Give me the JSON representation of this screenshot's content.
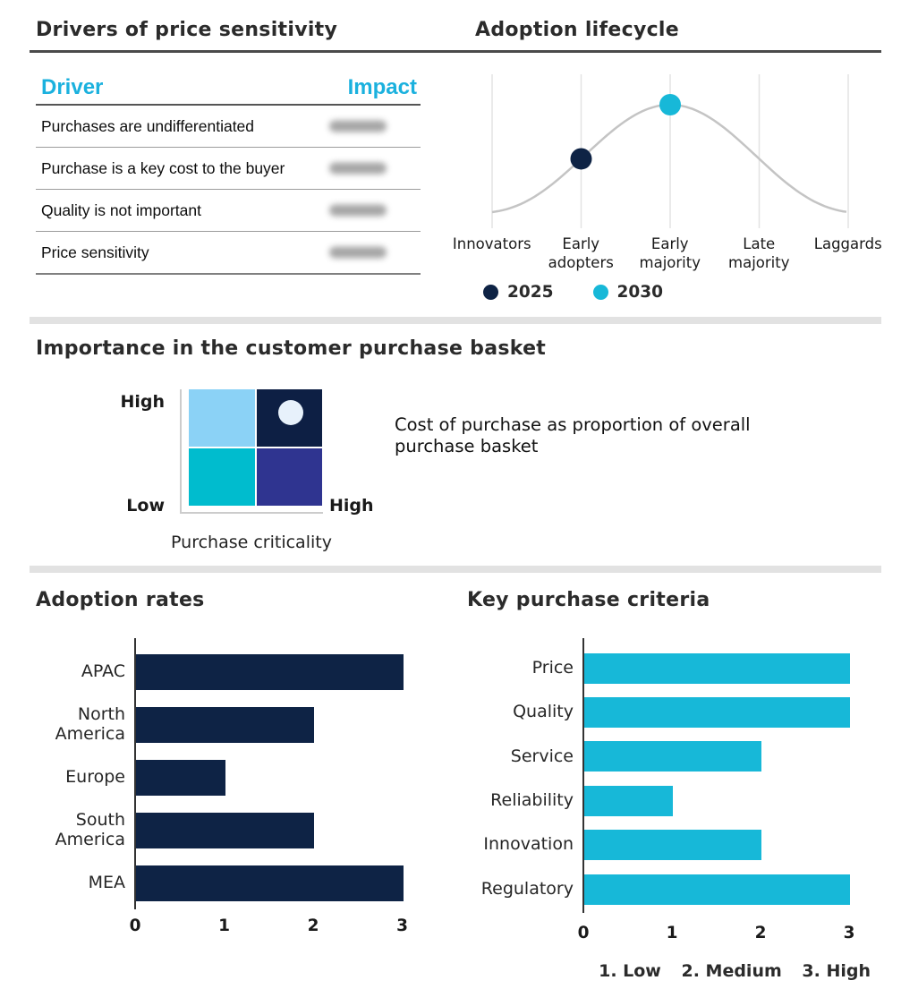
{
  "chart_data": [
    {
      "id": "drivers-of-price-sensitivity",
      "type": "table",
      "title": "Drivers of price sensitivity",
      "columns": [
        "Driver",
        "Impact"
      ],
      "header_color": "#1BB1DE",
      "rows": [
        {
          "driver": "Purchases are undifferentiated",
          "impact": "[blurred]"
        },
        {
          "driver": "Purchase is a key cost to the buyer",
          "impact": "[blurred]"
        },
        {
          "driver": "Quality is not important",
          "impact": "[blurred]"
        },
        {
          "driver": "Price sensitivity",
          "impact": "[blurred]"
        }
      ]
    },
    {
      "id": "adoption-lifecycle",
      "type": "line",
      "title": "Adoption lifecycle",
      "categories": [
        "Innovators",
        "Early adopters",
        "Early majority",
        "Late majority",
        "Laggards"
      ],
      "curve": {
        "shape": "bell",
        "peak_category": "Early majority",
        "color": "#C4C4C4"
      },
      "series": [
        {
          "name": "2025",
          "color": "#0E2345",
          "point_category": "Early adopters"
        },
        {
          "name": "2030",
          "color": "#17B8D8",
          "point_category": "Early majority"
        }
      ],
      "legend_position": "bottom",
      "grid": "vertical"
    },
    {
      "id": "importance-purchase-basket",
      "type": "heatmap",
      "title": "Importance in the customer purchase basket",
      "y_high_label": "High",
      "y_low_label": "Low",
      "x_high_label": "High",
      "x_axis_label": "Purchase criticality",
      "quadrants": [
        {
          "position": "top-left",
          "color": "#8BD2F6"
        },
        {
          "position": "top-right",
          "color": "#0D1F44",
          "marker": true
        },
        {
          "position": "bottom-left",
          "color": "#00BCCE"
        },
        {
          "position": "bottom-right",
          "color": "#2F3490"
        }
      ],
      "marker_color": "#E7F1FB",
      "annotation": "Cost of purchase as proportion of overall purchase basket"
    },
    {
      "id": "adoption-rates",
      "type": "bar",
      "orientation": "horizontal",
      "title": "Adoption rates",
      "categories": [
        "APAC",
        "North America",
        "Europe",
        "South America",
        "MEA"
      ],
      "values": [
        3,
        2,
        1,
        2,
        3
      ],
      "bar_color": "#0E2345",
      "xlim": [
        0,
        3
      ],
      "ticks": [
        "0",
        "1",
        "2",
        "3"
      ]
    },
    {
      "id": "key-purchase-criteria",
      "type": "bar",
      "orientation": "horizontal",
      "title": "Key purchase criteria",
      "categories": [
        "Price",
        "Quality",
        "Service",
        "Reliability",
        "Innovation",
        "Regulatory"
      ],
      "values": [
        3,
        3,
        2,
        1,
        2,
        3
      ],
      "bar_color": "#17B8D8",
      "xlim": [
        0,
        3
      ],
      "ticks": [
        "0",
        "1",
        "2",
        "3"
      ],
      "footnote_parts": [
        "1. Low",
        "2. Medium",
        "3. High"
      ]
    }
  ]
}
